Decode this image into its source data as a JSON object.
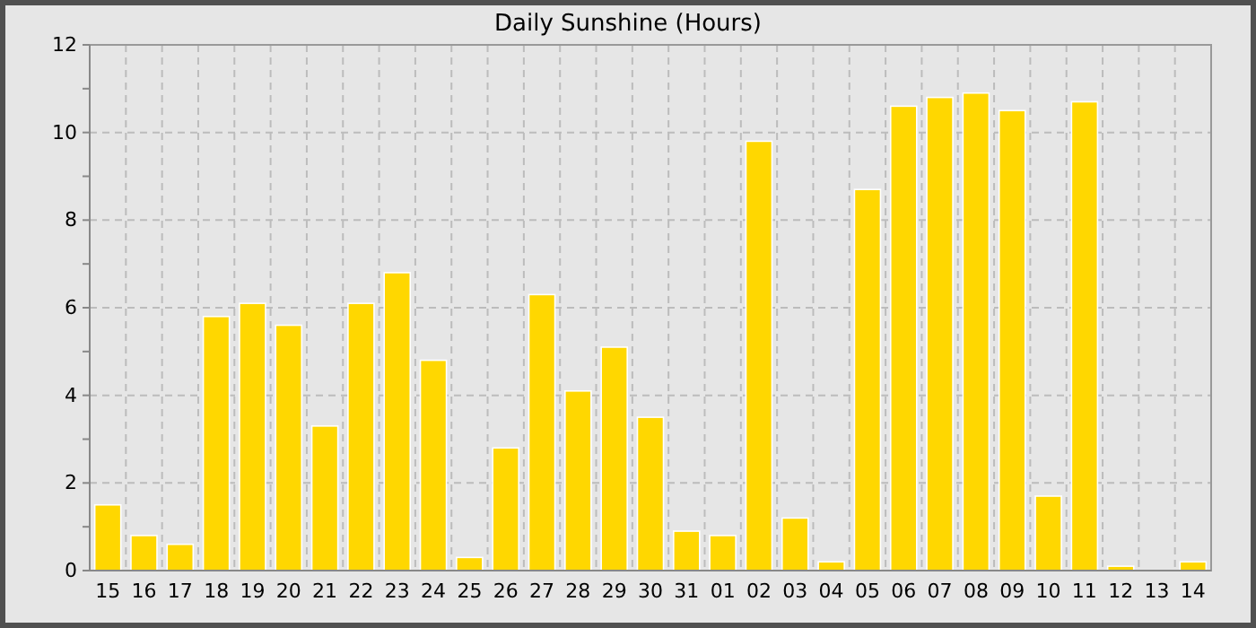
{
  "chart_data": {
    "type": "bar",
    "title": "Daily Sunshine (Hours)",
    "categories": [
      "15",
      "16",
      "17",
      "18",
      "19",
      "20",
      "21",
      "22",
      "23",
      "24",
      "25",
      "26",
      "27",
      "28",
      "29",
      "30",
      "31",
      "01",
      "02",
      "03",
      "04",
      "05",
      "06",
      "07",
      "08",
      "09",
      "10",
      "11",
      "12",
      "13",
      "14"
    ],
    "values": [
      1.5,
      0.8,
      0.6,
      5.8,
      6.1,
      5.6,
      3.3,
      6.1,
      6.8,
      4.8,
      0.3,
      2.8,
      6.3,
      4.1,
      5.1,
      3.5,
      0.9,
      0.8,
      9.8,
      1.2,
      0.2,
      8.7,
      10.6,
      10.8,
      10.9,
      10.5,
      1.7,
      10.7,
      0.1,
      0,
      0.2
    ],
    "color": "#ffd700",
    "ylim": [
      0,
      12
    ],
    "yticks": [
      0,
      {
        "value": 1,
        "label": null
      },
      2,
      {
        "value": 3,
        "label": null
      },
      4,
      {
        "value": 5,
        "label": null
      },
      6,
      {
        "value": 7,
        "label": null
      },
      8,
      {
        "value": 9,
        "label": null
      },
      10,
      {
        "value": 11,
        "label": null
      },
      12
    ],
    "grid": true
  }
}
